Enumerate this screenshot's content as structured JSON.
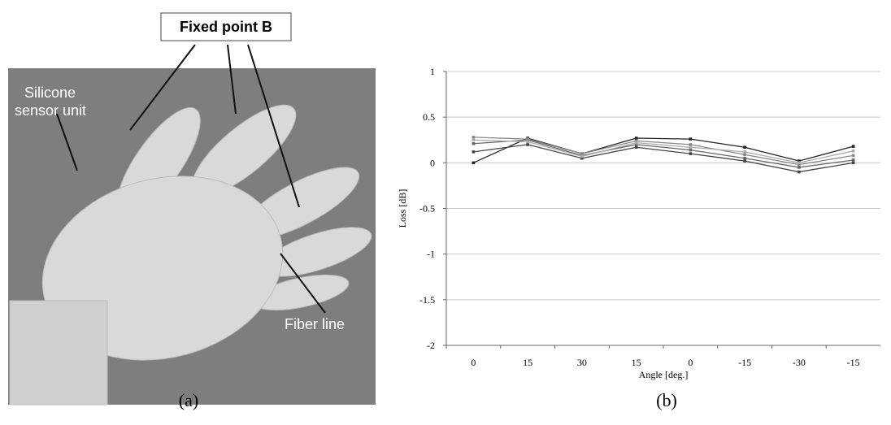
{
  "figure": {
    "photo": {
      "fixed_label": "Fixed point B",
      "silicone_label": [
        "Silicone",
        "sensor unit"
      ],
      "fiber_label": "Fiber line"
    },
    "captions": [
      "(a)",
      "(b)"
    ]
  },
  "chart_data": {
    "type": "line",
    "x_label": "Angle [deg.]",
    "y_label": "Loss [dB]",
    "categories": [
      "0",
      "15",
      "30",
      "15",
      "0",
      "-15",
      "-30",
      "-15"
    ],
    "series": [
      {
        "color": "#222222",
        "values": [
          0,
          0.27,
          0.1,
          0.27,
          0.26,
          0.17,
          0.02,
          0.18
        ]
      },
      {
        "color": "#444444",
        "values": [
          0.12,
          0.2,
          0.05,
          0.17,
          0.1,
          0.02,
          -0.1,
          0
        ]
      },
      {
        "color": "#666666",
        "values": [
          0.21,
          0.25,
          0.08,
          0.2,
          0.14,
          0.05,
          -0.05,
          0.03
        ]
      },
      {
        "color": "#888888",
        "values": [
          0.28,
          0.26,
          0.1,
          0.24,
          0.2,
          0.09,
          -0.02,
          0.08
        ]
      },
      {
        "color": "#aaaaaa",
        "values": [
          0.25,
          0.23,
          0.07,
          0.22,
          0.17,
          0.12,
          0,
          0.13
        ]
      }
    ],
    "ylim": [
      -2,
      1
    ],
    "yticks": [
      -2,
      -1.5,
      -1,
      -0.5,
      0,
      0.5,
      1
    ],
    "grid": true
  }
}
